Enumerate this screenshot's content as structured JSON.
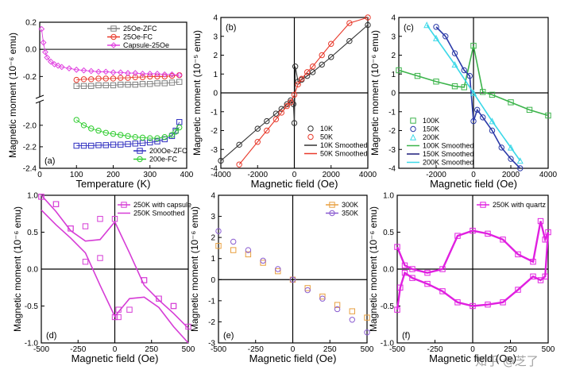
{
  "watermark": "知乎 @芝了",
  "chart_data": [
    {
      "id": "a",
      "type": "scatter",
      "panel_label": "(a)",
      "xlabel": "Temperature (K)",
      "ylabel": "Magnetic moment (10⁻⁶ emu)",
      "xlim": [
        0,
        400
      ],
      "xticks": [
        0,
        100,
        200,
        300,
        400
      ],
      "ylim_upper": [
        -0.35,
        0.2
      ],
      "yticks_upper": [
        "0.2",
        "0.0",
        "-0.2"
      ],
      "yticks_upper_vals": [
        0.2,
        0.0,
        -0.2
      ],
      "ylim_lower": [
        -2.4,
        -1.78
      ],
      "yticks_lower": [
        "-2.0",
        "-2.2",
        "-2.4"
      ],
      "yticks_lower_vals": [
        -2.0,
        -2.2,
        -2.4
      ],
      "axis_break": true,
      "legend_top": [
        "25Oe-ZFC",
        "25Oe-FC",
        "Capsule-25Oe"
      ],
      "legend_bottom": [
        "200Oe-ZFC",
        "200e-FC"
      ],
      "series": [
        {
          "name": "25Oe-ZFC",
          "color": "#808080",
          "marker": "square",
          "segment": "upper",
          "x": [
            100,
            120,
            140,
            160,
            180,
            200,
            220,
            240,
            260,
            280,
            300,
            320,
            340,
            360,
            380
          ],
          "y": [
            -0.27,
            -0.27,
            -0.27,
            -0.265,
            -0.265,
            -0.265,
            -0.26,
            -0.26,
            -0.26,
            -0.255,
            -0.255,
            -0.25,
            -0.25,
            -0.245,
            -0.24
          ]
        },
        {
          "name": "25Oe-FC",
          "color": "#e83a2c",
          "marker": "circle",
          "segment": "upper",
          "x": [
            100,
            120,
            140,
            160,
            180,
            200,
            220,
            240,
            260,
            280,
            300,
            320,
            340,
            360,
            380
          ],
          "y": [
            -0.225,
            -0.22,
            -0.22,
            -0.215,
            -0.215,
            -0.215,
            -0.21,
            -0.21,
            -0.205,
            -0.205,
            -0.2,
            -0.2,
            -0.2,
            -0.195,
            -0.19
          ]
        },
        {
          "name": "Capsule-25Oe",
          "color": "#e040e0",
          "marker": "diamond",
          "segment": "upper",
          "x": [
            5,
            10,
            15,
            20,
            30,
            40,
            50,
            60,
            80,
            100,
            120,
            140,
            160,
            180,
            200,
            220,
            240,
            260,
            280,
            300,
            320,
            340,
            360,
            380
          ],
          "y": [
            0.15,
            0.05,
            -0.02,
            -0.06,
            -0.09,
            -0.11,
            -0.12,
            -0.13,
            -0.14,
            -0.15,
            -0.155,
            -0.16,
            -0.165,
            -0.165,
            -0.17,
            -0.17,
            -0.175,
            -0.175,
            -0.18,
            -0.18,
            -0.18,
            -0.185,
            -0.185,
            -0.19
          ]
        },
        {
          "name": "200Oe-ZFC",
          "color": "#3030c0",
          "marker": "square",
          "segment": "lower",
          "x": [
            100,
            120,
            140,
            160,
            180,
            200,
            220,
            240,
            260,
            280,
            300,
            320,
            340,
            360,
            370,
            380
          ],
          "y": [
            -2.19,
            -2.19,
            -2.19,
            -2.185,
            -2.185,
            -2.18,
            -2.18,
            -2.175,
            -2.17,
            -2.165,
            -2.16,
            -2.15,
            -2.13,
            -2.1,
            -2.05,
            -1.97
          ]
        },
        {
          "name": "200e-FC",
          "color": "#2ecc2e",
          "marker": "circle",
          "segment": "lower",
          "x": [
            100,
            120,
            140,
            160,
            180,
            200,
            220,
            240,
            260,
            280,
            300,
            320,
            340,
            360,
            370,
            380
          ],
          "y": [
            -1.95,
            -2.0,
            -2.03,
            -2.05,
            -2.07,
            -2.08,
            -2.09,
            -2.1,
            -2.11,
            -2.115,
            -2.12,
            -2.12,
            -2.11,
            -2.09,
            -2.06,
            -2.02
          ]
        }
      ]
    },
    {
      "id": "b",
      "type": "line",
      "panel_label": "(b)",
      "xlabel": "Magnetic field (Oe)",
      "ylabel": "Magnetic moment (10⁻⁵ emu)",
      "xlim": [
        -4000,
        4000
      ],
      "xticks": [
        -4000,
        -2000,
        0,
        2000,
        4000
      ],
      "ylim": [
        -4,
        4
      ],
      "yticks": [
        -4,
        -3,
        -2,
        -1,
        0,
        1,
        2,
        3,
        4
      ],
      "legend": [
        "10K",
        "50K",
        "10K Smoothed",
        "50K Smoothed"
      ],
      "series": [
        {
          "name": "10K",
          "color": "#333333",
          "marker": "circle",
          "x": [
            -4000,
            -3000,
            -2000,
            -1500,
            -1000,
            -700,
            -400,
            -200,
            -50,
            0,
            50,
            200,
            400,
            700,
            1000,
            1500,
            2000,
            3000,
            4000
          ],
          "y": [
            -3.6,
            -2.75,
            -1.9,
            -1.5,
            -1.1,
            -0.85,
            -0.6,
            -0.4,
            -0.6,
            -1.6,
            1.4,
            0.6,
            0.7,
            0.9,
            1.1,
            1.5,
            1.9,
            2.75,
            3.6
          ]
        },
        {
          "name": "50K",
          "color": "#e83a2c",
          "marker": "circle",
          "x": [
            -3000,
            -2000,
            -1500,
            -1000,
            -700,
            -400,
            -200,
            0,
            200,
            400,
            700,
            1000,
            1500,
            2000,
            3000,
            4000
          ],
          "y": [
            -3.8,
            -2.6,
            -2.0,
            -1.4,
            -1.05,
            -0.7,
            -0.5,
            -0.1,
            0.45,
            0.75,
            1.1,
            1.4,
            2.0,
            2.6,
            3.7,
            4.0
          ]
        }
      ]
    },
    {
      "id": "c",
      "type": "line",
      "panel_label": "(c)",
      "xlabel": "Magnetic field (Oe)",
      "ylabel": "Magnetic moment (10⁻⁶ emu)",
      "xlim": [
        -4000,
        4000
      ],
      "xticks": [
        -2000,
        0,
        2000,
        4000
      ],
      "ylim": [
        -4,
        4
      ],
      "yticks": [
        -4,
        -3,
        -2,
        -1,
        0,
        1,
        2,
        3,
        4
      ],
      "legend": [
        "100K",
        "150K",
        "200K",
        "100K Smoothed",
        "150K Smoothed",
        "200K Smoothed"
      ],
      "series": [
        {
          "name": "100K",
          "color": "#3cb44b",
          "marker": "square",
          "x": [
            -4000,
            -3000,
            -2000,
            -1000,
            -500,
            0,
            500,
            1000,
            2000,
            3000,
            4000
          ],
          "y": [
            1.2,
            0.9,
            0.6,
            0.35,
            0.3,
            2.5,
            0.05,
            -0.1,
            -0.5,
            -0.9,
            -1.2
          ]
        },
        {
          "name": "150K",
          "color": "#2b3aa8",
          "marker": "circle",
          "x": [
            -2000,
            -1500,
            -1000,
            -500,
            -200,
            0,
            200,
            500,
            1000,
            1500,
            2000,
            2500
          ],
          "y": [
            3.5,
            3.0,
            2.1,
            1.2,
            0.9,
            -1.5,
            -0.9,
            -1.3,
            -2.0,
            -2.9,
            -3.5,
            -4.0
          ]
        },
        {
          "name": "200K",
          "color": "#3cd8e8",
          "marker": "triangle",
          "x": [
            -2500,
            -2000,
            -1000,
            0,
            1000,
            2000,
            2500
          ],
          "y": [
            3.6,
            2.9,
            1.5,
            0.0,
            -1.5,
            -2.9,
            -3.6
          ]
        }
      ]
    },
    {
      "id": "d",
      "type": "line",
      "panel_label": "(d)",
      "xlabel": "Magnetic field (Oe)",
      "ylabel": "Magnetic moment (10⁻⁶ emu)",
      "xlim": [
        -500,
        500
      ],
      "xticks": [
        -500,
        -250,
        0,
        250,
        500
      ],
      "ylim": [
        -1.0,
        1.0
      ],
      "yticks": [
        "1.0",
        "0.5",
        "0.0",
        "-0.5",
        "-1.0"
      ],
      "yticks_vals": [
        1.0,
        0.5,
        0.0,
        -0.5,
        -1.0
      ],
      "legend": [
        "250K with capsule",
        "250K Smoothed"
      ],
      "series": [
        {
          "name": "250K with capsule",
          "color": "#d63cd6",
          "marker": "square",
          "x": [
            -500,
            -400,
            -300,
            -200,
            -100,
            0,
            25,
            200,
            300,
            400,
            500,
            400,
            300,
            200,
            100,
            25,
            0,
            -100,
            -200,
            -300,
            -400,
            -500
          ],
          "y": [
            0.98,
            0.88,
            0.55,
            0.1,
            0.15,
            -0.65,
            -0.65,
            -0.15,
            -0.4,
            -0.5,
            -0.78,
            -0.5,
            -0.4,
            -0.15,
            -0.55,
            -0.55,
            0.68,
            0.68,
            0.58,
            0.55,
            0.88,
            0.98
          ]
        },
        {
          "name": "250K Smoothed",
          "color": "#d63cd6",
          "marker": "none",
          "x": [
            -500,
            -400,
            -300,
            -200,
            -100,
            0,
            100,
            200,
            300,
            400,
            500
          ],
          "y": [
            1.0,
            0.78,
            0.52,
            0.38,
            0.4,
            0.64,
            0.22,
            -0.22,
            -0.42,
            -0.6,
            -0.8
          ]
        }
      ]
    },
    {
      "id": "e",
      "type": "scatter",
      "panel_label": "(e)",
      "xlabel": "Magnetic field (Oe)",
      "ylabel": "Magnetic moment (10⁻⁶ emu)",
      "xlim": [
        -500,
        500
      ],
      "xticks": [
        -500,
        -250,
        0,
        250,
        500
      ],
      "ylim": [
        -3,
        4
      ],
      "yticks": [
        4,
        3,
        2,
        1,
        0,
        -1,
        -2,
        -3
      ],
      "legend": [
        "300K",
        "350K"
      ],
      "series": [
        {
          "name": "300K",
          "color": "#e8a040",
          "marker": "square",
          "x": [
            -500,
            -400,
            -300,
            -200,
            -100,
            0,
            100,
            200,
            300,
            400,
            500
          ],
          "y": [
            1.6,
            1.4,
            1.2,
            0.8,
            0.4,
            0.0,
            -0.4,
            -0.8,
            -1.2,
            -1.5,
            -1.8
          ]
        },
        {
          "name": "350K",
          "color": "#8a5cd0",
          "marker": "circle",
          "x": [
            -500,
            -400,
            -300,
            -200,
            -100,
            0,
            100,
            200,
            300,
            400,
            500
          ],
          "y": [
            2.3,
            1.8,
            1.4,
            0.9,
            0.5,
            0.0,
            -0.5,
            -0.9,
            -1.4,
            -1.9,
            -2.5
          ]
        }
      ]
    },
    {
      "id": "f",
      "type": "line",
      "panel_label": "(f)",
      "xlabel": "Magnetic field (Oe)",
      "ylabel": "Magnetic moment (10⁻⁶ emu)",
      "xlim": [
        -500,
        500
      ],
      "xticks": [
        -500,
        -250,
        0,
        250,
        500
      ],
      "ylim": [
        -1.0,
        1.0
      ],
      "yticks": [
        "1.0",
        "0.5",
        "0.0",
        "-0.5",
        "-1.0"
      ],
      "yticks_vals": [
        1.0,
        0.5,
        0.0,
        -0.5,
        -1.0
      ],
      "legend": [
        "250K with quartz"
      ],
      "series": [
        {
          "name": "250K with quartz",
          "color": "#e020e0",
          "marker": "square",
          "x": [
            -500,
            -450,
            -400,
            -300,
            -200,
            -100,
            0,
            100,
            200,
            300,
            400,
            450,
            480,
            500,
            480,
            450,
            400,
            300,
            200,
            100,
            0,
            -100,
            -200,
            -300,
            -400,
            -450,
            -480,
            -500
          ],
          "y": [
            0.3,
            0.05,
            0.0,
            -0.05,
            0.0,
            0.45,
            0.52,
            0.48,
            0.4,
            0.2,
            0.1,
            0.65,
            0.4,
            0.5,
            -0.1,
            -0.15,
            -0.1,
            -0.28,
            -0.45,
            -0.48,
            -0.5,
            -0.45,
            -0.3,
            -0.2,
            -0.12,
            -0.05,
            -0.25,
            -0.55
          ]
        }
      ]
    }
  ]
}
